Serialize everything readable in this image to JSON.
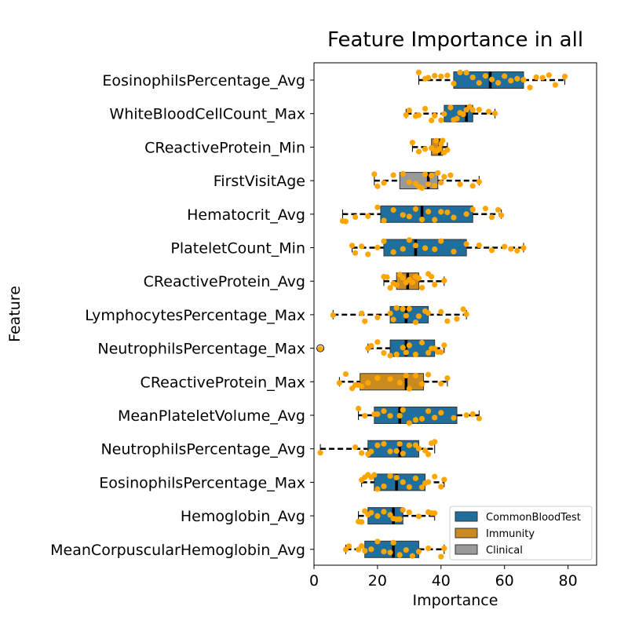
{
  "chart_data": {
    "type": "boxplot",
    "title": "Feature Importance in all",
    "xlabel": "Importance",
    "ylabel": "Feature",
    "xlim": [
      0,
      89
    ],
    "xticks": [
      0,
      20,
      40,
      60,
      80
    ],
    "grid": false,
    "legend_position": "lower-right",
    "colors": {
      "CommonBloodTest": "#1f6f9e",
      "Immunity": "#c98b1f",
      "Clinical": "#999999",
      "points": "#ffa500",
      "whisker": "#000000"
    },
    "legend": [
      {
        "name": "CommonBloodTest"
      },
      {
        "name": "Immunity"
      },
      {
        "name": "Clinical"
      }
    ],
    "features": [
      {
        "label": "EosinophilsPercentage_Avg",
        "category": "CommonBloodTest",
        "whisker_low": 33,
        "q1": 44,
        "median": 55.5,
        "q3": 66,
        "whisker_high": 79,
        "outliers": [],
        "points": [
          35,
          33,
          36,
          38,
          40,
          42,
          44,
          46,
          48,
          50,
          52,
          54,
          56,
          58,
          60,
          62,
          64,
          66,
          68,
          70,
          72,
          74,
          76,
          79
        ]
      },
      {
        "label": "WhiteBloodCellCount_Max",
        "category": "CommonBloodTest",
        "whisker_low": 29,
        "q1": 41,
        "median": 48,
        "q3": 50,
        "whisker_high": 57,
        "outliers": [],
        "points": [
          29,
          30,
          32,
          33,
          35,
          37,
          38,
          40,
          41,
          43,
          44,
          45,
          46,
          47,
          48,
          49,
          50,
          52,
          55,
          57
        ]
      },
      {
        "label": "CReactiveProtein_Min",
        "category": "Immunity",
        "whisker_low": 31,
        "q1": 37,
        "median": 39.5,
        "q3": 40.5,
        "whisker_high": 42,
        "outliers": [],
        "points": [
          31,
          33,
          35,
          37,
          38,
          38.5,
          39,
          39.5,
          40,
          40.5,
          41,
          42
        ]
      },
      {
        "label": "FirstVisitAge",
        "category": "Clinical",
        "whisker_low": 19,
        "q1": 27,
        "median": 36,
        "q3": 39,
        "whisker_high": 52,
        "outliers": [],
        "points": [
          19,
          20,
          22,
          25,
          28,
          30,
          32,
          33,
          34,
          35,
          36,
          37,
          38,
          39,
          40,
          41,
          43,
          46,
          50,
          52
        ]
      },
      {
        "label": "Hematocrit_Avg",
        "category": "CommonBloodTest",
        "whisker_low": 9,
        "q1": 21,
        "median": 34,
        "q3": 50,
        "whisker_high": 59,
        "outliers": [],
        "points": [
          9,
          10,
          13,
          17,
          20,
          22,
          25,
          28,
          30,
          32,
          34,
          36,
          38,
          40,
          42,
          44,
          48,
          50,
          54,
          56,
          58,
          59
        ]
      },
      {
        "label": "PlateletCount_Min",
        "category": "CommonBloodTest",
        "whisker_low": 12,
        "q1": 22,
        "median": 32,
        "q3": 48,
        "whisker_high": 66,
        "outliers": [],
        "points": [
          12,
          13,
          15,
          17,
          20,
          22,
          25,
          28,
          30,
          32,
          35,
          38,
          40,
          44,
          48,
          52,
          56,
          60,
          62,
          64,
          66
        ]
      },
      {
        "label": "CReactiveProtein_Avg",
        "category": "Immunity",
        "whisker_low": 22,
        "q1": 26,
        "median": 29.5,
        "q3": 33,
        "whisker_high": 41,
        "outliers": [],
        "points": [
          22,
          23,
          24,
          25,
          26,
          27,
          28,
          29,
          30,
          31,
          32,
          33,
          34,
          36,
          37,
          38,
          41
        ]
      },
      {
        "label": "LymphocytesPercentage_Max",
        "category": "CommonBloodTest",
        "whisker_low": 6,
        "q1": 24,
        "median": 29,
        "q3": 36,
        "whisker_high": 48,
        "outliers": [],
        "points": [
          6,
          15,
          16,
          20,
          24,
          25,
          26,
          28,
          29,
          30,
          32,
          33,
          35,
          36,
          40,
          42,
          45,
          47,
          48
        ]
      },
      {
        "label": "NeutrophilsPercentage_Max",
        "category": "CommonBloodTest",
        "whisker_low": 17,
        "q1": 24,
        "median": 29,
        "q3": 38,
        "whisker_high": 41,
        "outliers": [
          2
        ],
        "points": [
          2,
          17,
          18,
          20,
          22,
          24,
          26,
          28,
          29,
          30,
          32,
          34,
          36,
          37,
          38,
          39,
          40,
          41
        ]
      },
      {
        "label": "CReactiveProtein_Max",
        "category": "Immunity",
        "whisker_low": 8,
        "q1": 14.5,
        "median": 29,
        "q3": 34.5,
        "whisker_high": 42,
        "outliers": [],
        "points": [
          8,
          10,
          12,
          13,
          14,
          15,
          17,
          20,
          24,
          27,
          29,
          30,
          32,
          34,
          36,
          40,
          42
        ]
      },
      {
        "label": "MeanPlateletVolume_Avg",
        "category": "CommonBloodTest",
        "whisker_low": 14,
        "q1": 19,
        "median": 27,
        "q3": 45,
        "whisker_high": 52,
        "outliers": [],
        "points": [
          14,
          16,
          19,
          20,
          22,
          24,
          27,
          28,
          30,
          32,
          34,
          36,
          38,
          40,
          44,
          48,
          50,
          52
        ]
      },
      {
        "label": "NeutrophilsPercentage_Avg",
        "category": "CommonBloodTest",
        "whisker_low": 2,
        "q1": 17,
        "median": 27,
        "q3": 33,
        "whisker_high": 38,
        "outliers": [],
        "points": [
          2,
          13,
          15,
          17,
          18,
          20,
          22,
          24,
          26,
          27,
          28,
          30,
          32,
          33,
          35,
          36,
          37,
          38
        ]
      },
      {
        "label": "EosinophilsPercentage_Max",
        "category": "CommonBloodTest",
        "whisker_low": 15,
        "q1": 19,
        "median": 26,
        "q3": 35,
        "whisker_high": 41,
        "outliers": [],
        "points": [
          15,
          16,
          17,
          18,
          19,
          20,
          22,
          24,
          26,
          28,
          30,
          32,
          34,
          35,
          36,
          38,
          40,
          41
        ]
      },
      {
        "label": "Hemoglobin_Avg",
        "category": "CommonBloodTest",
        "whisker_low": 14,
        "q1": 17,
        "median": 25,
        "q3": 28,
        "whisker_high": 38,
        "outliers": [],
        "points": [
          14,
          15,
          16,
          17,
          18,
          20,
          22,
          24,
          25,
          26,
          27,
          28,
          30,
          33,
          36,
          37,
          38
        ]
      },
      {
        "label": "MeanCorpuscularHemoglobin_Avg",
        "category": "CommonBloodTest",
        "whisker_low": 10,
        "q1": 16,
        "median": 25,
        "q3": 33,
        "whisker_high": 41,
        "outliers": [],
        "points": [
          10,
          11,
          14,
          15,
          16,
          18,
          20,
          22,
          24,
          25,
          27,
          29,
          31,
          33,
          36,
          40,
          41
        ]
      }
    ]
  }
}
